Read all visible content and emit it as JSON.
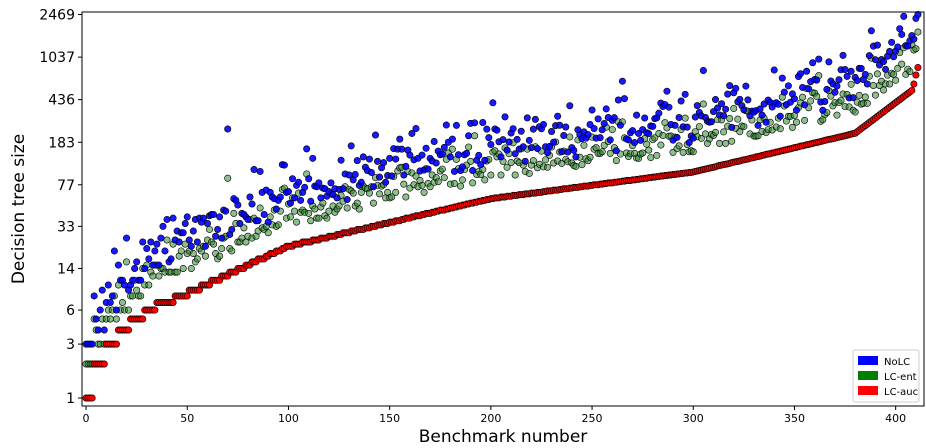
{
  "chart_data": {
    "type": "scatter",
    "title": "",
    "xlabel": "Benchmark number",
    "ylabel": "Decision tree size",
    "y_scale": "log",
    "xlim": [
      -2,
      414
    ],
    "ylim": [
      0.85,
      2600
    ],
    "x_ticks": [
      0,
      50,
      100,
      150,
      200,
      250,
      300,
      350,
      400
    ],
    "y_ticks": [
      1,
      3,
      6,
      14,
      33,
      77,
      183,
      436,
      1037,
      2469
    ],
    "n_points": 412,
    "grid": false,
    "legend_position": "bottom-right",
    "series": [
      {
        "name": "NoLC",
        "color": "#0000ff",
        "key_values": {
          "start": 2,
          "x40": 28,
          "x100": 62,
          "x200": 160,
          "x300": 280,
          "x380": 600,
          "x410": 1037,
          "max": 2469
        },
        "outliers": [
          {
            "x": 70,
            "y": 240
          }
        ]
      },
      {
        "name": "LC-ent",
        "color": "#008000",
        "key_values": {
          "start": 1,
          "x40": 16,
          "x100": 40,
          "x200": 88,
          "x300": 160,
          "x380": 360,
          "x410": 1000
        },
        "outliers": [
          {
            "x": 70,
            "y": 88
          }
        ]
      },
      {
        "name": "LC-auc",
        "color": "#ff0000",
        "key_values": {
          "start": 1,
          "x40": 7,
          "x100": 22,
          "x200": 58,
          "x300": 100,
          "x380": 220,
          "x410": 560,
          "max": 900
        }
      }
    ]
  }
}
